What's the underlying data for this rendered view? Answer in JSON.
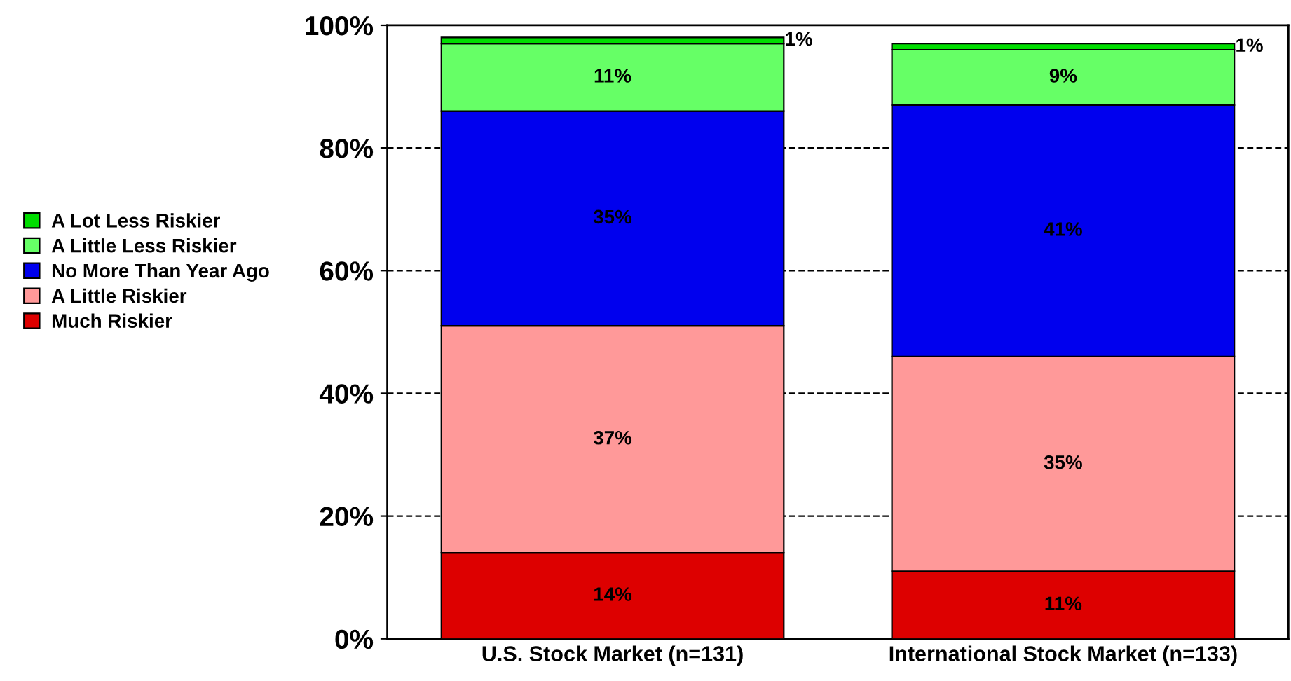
{
  "chart_data": {
    "type": "bar",
    "stacked": true,
    "categories": [
      "U.S. Stock Market (n=131)",
      "International Stock Market (n=133)"
    ],
    "series": [
      {
        "name": "Much Riskier",
        "color": "#dd0000",
        "values": [
          14,
          11
        ],
        "value_labels": [
          "14%",
          "11%"
        ]
      },
      {
        "name": "A Little Riskier",
        "color": "#ff9999",
        "values": [
          37,
          35
        ],
        "value_labels": [
          "37%",
          "35%"
        ]
      },
      {
        "name": "No More Than Year Ago",
        "color": "#0000ee",
        "values": [
          35,
          41
        ],
        "value_labels": [
          "35%",
          "41%"
        ]
      },
      {
        "name": "A Little Less Riskier",
        "color": "#66ff66",
        "values": [
          11,
          9
        ],
        "value_labels": [
          "11%",
          "9%"
        ]
      },
      {
        "name": "A Lot Less Riskier",
        "color": "#00dd00",
        "values": [
          1,
          1
        ],
        "value_labels": [
          "1%",
          "1%"
        ]
      }
    ],
    "ylim": [
      0,
      100
    ],
    "yticks": [
      {
        "value": 0,
        "label": "0%"
      },
      {
        "value": 20,
        "label": "20%"
      },
      {
        "value": 40,
        "label": "40%"
      },
      {
        "value": 60,
        "label": "60%"
      },
      {
        "value": 80,
        "label": "80%"
      },
      {
        "value": 100,
        "label": "100%"
      }
    ],
    "grid": "y",
    "legend": "left"
  }
}
